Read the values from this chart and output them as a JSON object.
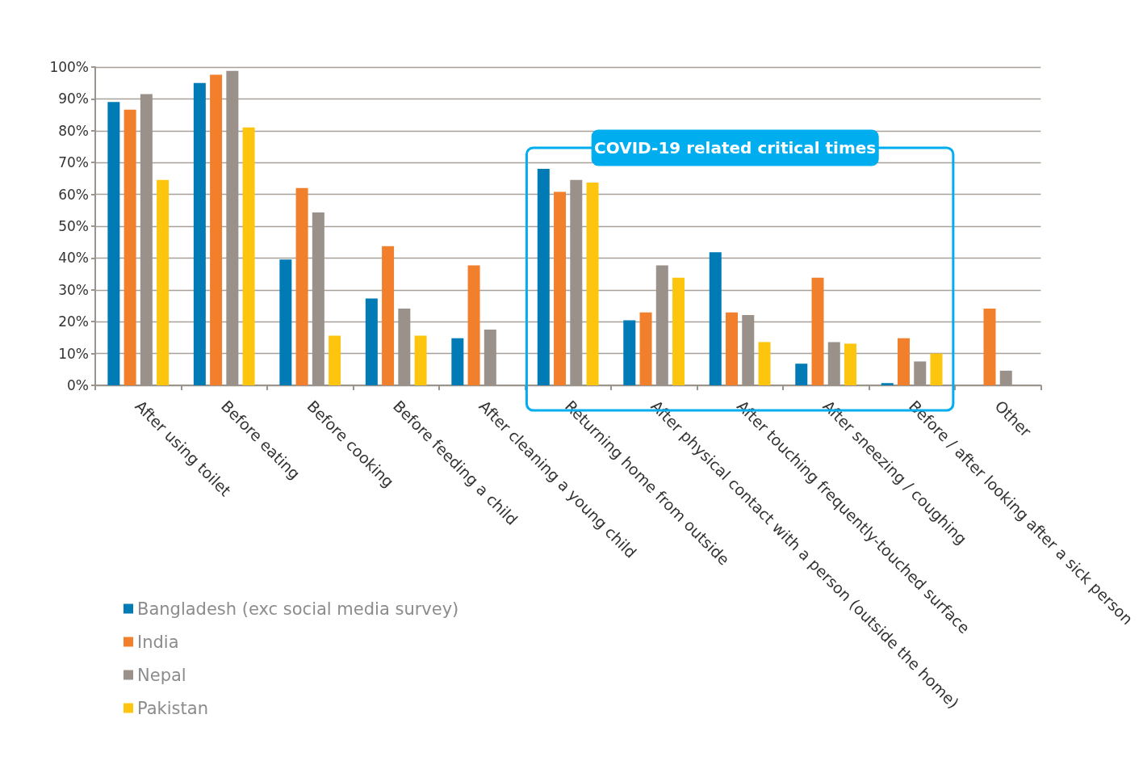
{
  "chart_data": {
    "type": "bar",
    "categories": [
      "After using toilet",
      "Before eating",
      "Before cooking",
      "Before feeding a child",
      "After cleaning a young child",
      "Returning home from outside",
      "After physical contact with a person (outside the home)",
      "After touching frequently-touched surface",
      "After sneezing / coughing",
      "Before / after looking after a sick person",
      "Other"
    ],
    "series": [
      {
        "name": "Bangladesh (exc social media survey)",
        "color": "#007bb6",
        "values": [
          89,
          95,
          39.5,
          27.3,
          14.8,
          68,
          20.4,
          41.8,
          6.8,
          0.7,
          null
        ]
      },
      {
        "name": "India",
        "color": "#f27f2c",
        "values": [
          86.6,
          97.6,
          62,
          43.7,
          37.7,
          60.8,
          22.9,
          22.9,
          33.8,
          14.8,
          24.1
        ]
      },
      {
        "name": "Nepal",
        "color": "#99918a",
        "values": [
          91.5,
          98.8,
          54.3,
          24.1,
          17.5,
          64.5,
          37.7,
          22.1,
          13.6,
          7.5,
          4.6
        ]
      },
      {
        "name": "Pakistan",
        "color": "#fdc50e",
        "values": [
          64.5,
          81,
          15.6,
          15.6,
          null,
          63.7,
          33.8,
          13.6,
          13.1,
          10,
          null
        ]
      }
    ],
    "ylim": [
      0,
      100
    ],
    "yticks": [
      {
        "value": 0,
        "label": "0%"
      },
      {
        "value": 10,
        "label": "10%"
      },
      {
        "value": 20,
        "label": "20%"
      },
      {
        "value": 30,
        "label": "30%"
      },
      {
        "value": 40,
        "label": "40%"
      },
      {
        "value": 50,
        "label": "50%"
      },
      {
        "value": 60,
        "label": "60%"
      },
      {
        "value": 70,
        "label": "70%"
      },
      {
        "value": 80,
        "label": "80%"
      },
      {
        "value": 90,
        "label": "90%"
      },
      {
        "value": 100,
        "label": "100%"
      }
    ],
    "annotations": [
      "COVID-19 related critical times"
    ],
    "grid": "y",
    "legend": "bottom left"
  }
}
